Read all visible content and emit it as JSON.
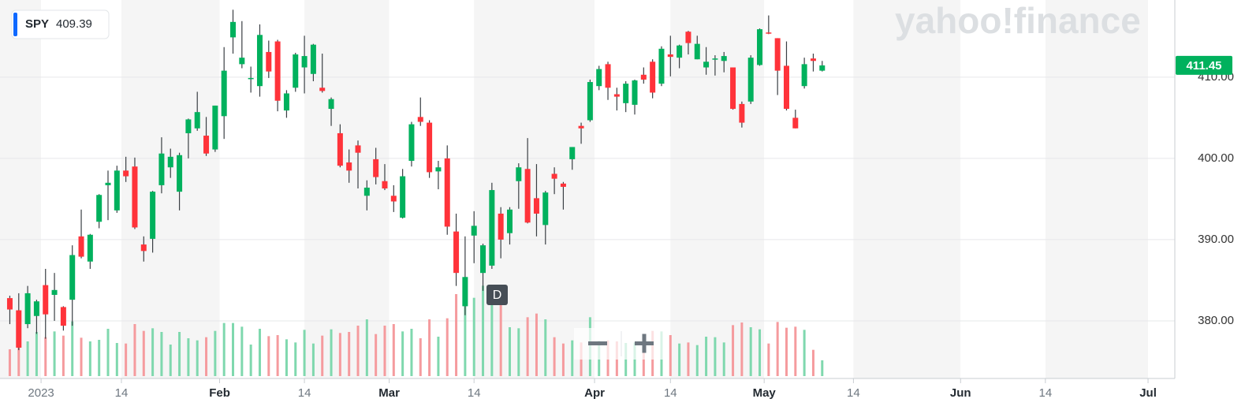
{
  "chart_data": {
    "type": "candlestick",
    "symbol": "SPY",
    "quote": 409.39,
    "last_price": 411.45,
    "watermark": "yahoo!finance",
    "marker": "D",
    "up_color": "#00b15d",
    "down_color": "#ff333a",
    "volume_up_color": "#7fd8ae",
    "volume_down_color": "#f59b9e",
    "last_price_color": "#00b15d",
    "grid": true,
    "xlim": [
      -5.1,
      126.5
    ],
    "ylim": [
      373.2,
      419.5
    ],
    "vlim": [
      0,
      240
    ],
    "xticks": [
      {
        "value": -0.5,
        "label": "2023"
      },
      {
        "value": 8.5,
        "label": "14"
      },
      {
        "value": 19.5,
        "label": "Feb"
      },
      {
        "value": 29,
        "label": "14"
      },
      {
        "value": 38.5,
        "label": "Mar"
      },
      {
        "value": 48,
        "label": "14"
      },
      {
        "value": 61.5,
        "label": "Apr"
      },
      {
        "value": 70,
        "label": "14"
      },
      {
        "value": 80.5,
        "label": "May"
      },
      {
        "value": 90.5,
        "label": "14"
      },
      {
        "value": 102.5,
        "label": "Jun"
      },
      {
        "value": 112,
        "label": "14"
      },
      {
        "value": 123.5,
        "label": "Jul"
      }
    ],
    "yticks": [
      {
        "value": 380,
        "label": "380.00"
      },
      {
        "value": 390,
        "label": "390.00"
      },
      {
        "value": 400,
        "label": "400.00"
      },
      {
        "value": 410,
        "label": "410.00"
      }
    ],
    "series": [
      {
        "name": "SPY",
        "x": [
          -4,
          -3,
          -2,
          -1,
          0,
          1,
          2,
          3,
          4,
          5,
          6,
          7,
          8,
          9,
          10,
          11,
          12,
          13,
          14,
          15,
          16,
          17,
          18,
          19,
          20,
          21,
          22,
          23,
          24,
          25,
          26,
          27,
          28,
          29,
          30,
          31,
          32,
          33,
          34,
          35,
          36,
          37,
          38,
          39,
          40,
          41,
          42,
          43,
          44,
          45,
          46,
          47,
          48,
          49,
          50,
          51,
          52,
          53,
          54,
          55,
          56,
          57,
          58,
          59,
          60,
          61,
          62,
          63,
          64,
          65,
          66,
          67,
          68,
          69,
          70,
          71,
          72,
          73,
          74,
          75,
          76,
          77,
          78,
          79,
          80,
          81,
          82,
          83,
          84,
          85,
          86,
          87
        ],
        "open": [
          382.8,
          381.3,
          379.6,
          380.6,
          384.4,
          383.2,
          381.7,
          382.6,
          390.4,
          387.3,
          392.2,
          396.7,
          393.6,
          398.5,
          399.0,
          389.4,
          390.1,
          396.7,
          398.9,
          395.9,
          403.1,
          403.7,
          402.8,
          401.1,
          405.2,
          414.9,
          411.6,
          409.8,
          408.9,
          413.1,
          414.4,
          405.9,
          408.7,
          411.2,
          410.4,
          408.7,
          406.1,
          403.1,
          399.5,
          401.6,
          395.4,
          399.9,
          397.2,
          395.4,
          392.7,
          399.7,
          405.1,
          404.4,
          398.4,
          400.0,
          391.0,
          381.8,
          390.5,
          385.9,
          386.8,
          393.2,
          390.8,
          397.2,
          398.7,
          395.1,
          391.8,
          398.1,
          396.9,
          399.9,
          404.0,
          404.7,
          408.9,
          411.6,
          407.9,
          406.8,
          406.6,
          410.3,
          411.9,
          409.2,
          412.8,
          412.4,
          415.6,
          412.2,
          411.2,
          412.2,
          412.0,
          411.2,
          406.7,
          407.0,
          411.5,
          415.5,
          414.8,
          411.4,
          405.0,
          408.9,
          412.3,
          410.8
        ],
        "high": [
          383.1,
          383.4,
          384.3,
          382.6,
          386.4,
          385.9,
          381.8,
          389.3,
          393.7,
          390.7,
          395.6,
          398.5,
          399.1,
          400.2,
          400.1,
          390.4,
          396.0,
          402.6,
          401.2,
          400.7,
          404.9,
          408.2,
          405.1,
          406.5,
          413.7,
          418.3,
          416.9,
          411.3,
          416.5,
          414.5,
          414.6,
          408.4,
          413.0,
          415.1,
          414.1,
          412.9,
          407.5,
          404.2,
          401.1,
          402.2,
          397.3,
          401.3,
          399.3,
          396.7,
          398.7,
          404.5,
          407.5,
          404.7,
          399.7,
          401.6,
          393.2,
          390.4,
          393.5,
          389.5,
          397.0,
          394.0,
          394.0,
          399.4,
          402.5,
          399.3,
          396.0,
          398.9,
          397.1,
          401.4,
          404.4,
          409.7,
          411.4,
          411.9,
          408.7,
          409.5,
          409.7,
          411.2,
          412.2,
          413.8,
          415.1,
          414.0,
          415.7,
          415.1,
          413.7,
          412.7,
          413.1,
          411.2,
          407.0,
          412.7,
          416.0,
          417.6,
          414.8,
          414.4,
          406.0,
          412.4,
          412.9,
          412.0
        ],
        "low": [
          379.6,
          376.4,
          379.1,
          378.4,
          377.8,
          380.0,
          378.8,
          379.4,
          387.7,
          386.4,
          391.4,
          392.4,
          393.3,
          397.1,
          391.3,
          387.3,
          388.4,
          395.7,
          397.6,
          393.6,
          400.0,
          403.4,
          400.3,
          400.8,
          402.4,
          412.9,
          411.1,
          408.1,
          407.6,
          409.9,
          405.8,
          405.0,
          408.2,
          408.0,
          409.5,
          408.1,
          404.0,
          398.9,
          397.0,
          396.3,
          393.6,
          396.8,
          396.1,
          393.4,
          392.6,
          399.0,
          404.0,
          397.6,
          396.2,
          390.6,
          384.3,
          380.7,
          387.1,
          383.7,
          386.4,
          387.7,
          389.4,
          393.8,
          392.0,
          390.4,
          389.4,
          395.6,
          393.7,
          398.6,
          401.8,
          404.5,
          408.4,
          407.2,
          405.9,
          405.7,
          405.4,
          409.2,
          407.4,
          408.9,
          410.1,
          411.1,
          412.8,
          412.2,
          410.3,
          410.2,
          410.6,
          406.0,
          403.8,
          406.7,
          411.4,
          415.3,
          407.8,
          405.9,
          403.7,
          408.6,
          410.7,
          410.7
        ],
        "close": [
          381.4,
          376.7,
          383.4,
          382.4,
          380.8,
          383.8,
          379.4,
          388.1,
          387.9,
          390.6,
          395.5,
          397.0,
          398.5,
          397.8,
          391.5,
          388.6,
          395.9,
          400.6,
          400.2,
          400.4,
          404.8,
          405.7,
          400.6,
          406.5,
          410.8,
          416.8,
          412.4,
          409.9,
          415.2,
          410.7,
          407.1,
          408.0,
          412.8,
          412.6,
          414.0,
          408.3,
          407.3,
          399.1,
          398.5,
          400.7,
          396.4,
          397.7,
          396.3,
          394.7,
          397.8,
          404.2,
          404.5,
          398.3,
          398.9,
          391.6,
          385.9,
          385.4,
          391.7,
          389.3,
          396.1,
          390.0,
          393.7,
          398.9,
          392.1,
          393.2,
          395.8,
          397.5,
          396.5,
          401.4,
          403.7,
          409.4,
          411.0,
          408.7,
          407.6,
          409.2,
          409.6,
          409.7,
          408.1,
          413.5,
          412.5,
          413.9,
          414.2,
          414.1,
          411.9,
          412.3,
          412.6,
          406.1,
          404.4,
          412.4,
          415.9,
          415.4,
          410.8,
          406.1,
          403.7,
          411.6,
          412.0,
          411.45
        ],
        "volume": [
          51,
          70,
          66,
          84,
          74,
          85,
          77,
          104,
          73,
          66,
          69,
          90,
          63,
          62,
          99,
          86,
          91,
          84,
          60,
          84,
          72,
          68,
          74,
          86,
          101,
          101,
          94,
          60,
          90,
          76,
          78,
          70,
          64,
          88,
          62,
          77,
          89,
          82,
          84,
          96,
          108,
          80,
          96,
          99,
          85,
          90,
          72,
          108,
          75,
          110,
          156,
          157,
          149,
          172,
          143,
          140,
          93,
          91,
          112,
          119,
          108,
          74,
          62,
          68,
          64,
          112,
          67,
          68,
          66,
          63,
          64,
          60,
          86,
          85,
          78,
          62,
          64,
          59,
          75,
          74,
          64,
          97,
          102,
          93,
          89,
          62,
          103,
          92,
          94,
          88,
          50,
          30
        ]
      }
    ]
  }
}
